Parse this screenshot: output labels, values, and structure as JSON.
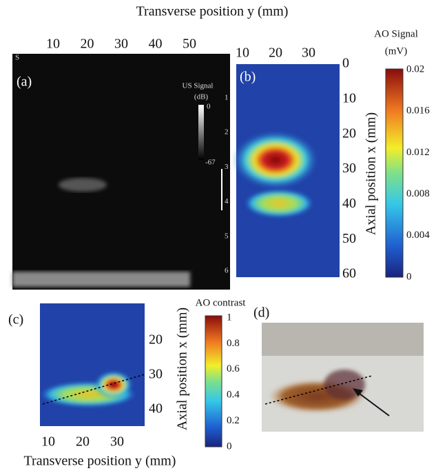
{
  "top_xlabel": "Transverse position y (mm)",
  "panel_a": {
    "label": "(a)",
    "top_ticks": [
      10,
      20,
      30,
      40,
      50
    ],
    "us_colorbar": {
      "title": "US Signal",
      "unit": "(dB)",
      "max": 0,
      "min": -67
    },
    "depth_ticks": [
      1,
      2,
      3,
      4,
      5,
      6
    ],
    "corner_mark": "S"
  },
  "panel_b": {
    "label": "(b)",
    "top_ticks": [
      10,
      20,
      30
    ],
    "right_ticks": [
      0,
      10,
      20,
      30,
      40,
      50,
      60
    ],
    "ylabel": "Axial position x (mm)",
    "colorbar": {
      "title": "AO Signal",
      "unit": "(mV)",
      "ticks": [
        0.02,
        0.016,
        0.012,
        0.008,
        0.004,
        0
      ]
    }
  },
  "panel_c": {
    "label": "(c)",
    "right_ticks": [
      20,
      30,
      40
    ],
    "bottom_ticks": [
      10,
      20,
      30
    ],
    "xlabel": "Transverse position y (mm)",
    "ylabel": "Axial position x (mm)",
    "colorbar": {
      "title": "AO contrast",
      "ticks": [
        1,
        0.8,
        0.6,
        0.4,
        0.2,
        0
      ]
    }
  },
  "panel_d": {
    "label": "(d)"
  }
}
